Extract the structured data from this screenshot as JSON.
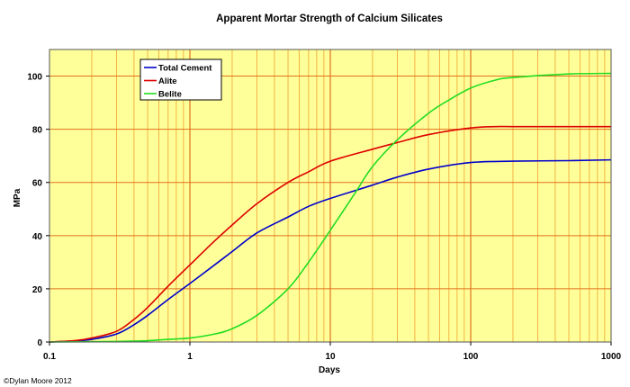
{
  "chart_data": {
    "type": "line",
    "title": "Apparent Mortar Strength of Calcium Silicates",
    "xlabel": "Days",
    "ylabel": "MPa",
    "xscale": "log",
    "xlim": [
      0.1,
      1000
    ],
    "ylim": [
      0,
      110
    ],
    "xticks": [
      "0.1",
      "1",
      "10",
      "100",
      "1000"
    ],
    "yticks": [
      "0",
      "20",
      "40",
      "60",
      "80",
      "100"
    ],
    "grid": true,
    "legend_position": "top-left",
    "background_color": "#ffff99",
    "grid_color": "#f0a030",
    "series": [
      {
        "name": "Total Cement",
        "color": "#0000cc",
        "x": [
          0.1,
          0.15,
          0.2,
          0.3,
          0.4,
          0.5,
          0.7,
          1,
          1.5,
          2,
          3,
          5,
          7,
          10,
          20,
          30,
          50,
          100,
          200,
          500,
          1000
        ],
        "y": [
          0,
          0.4,
          1,
          3,
          6.5,
          10,
          16,
          22,
          29,
          34,
          41,
          47,
          51,
          54,
          59,
          62,
          65,
          67.5,
          68,
          68.2,
          68.5
        ]
      },
      {
        "name": "Alite",
        "color": "#dd0000",
        "x": [
          0.1,
          0.15,
          0.2,
          0.3,
          0.4,
          0.5,
          0.7,
          1,
          1.5,
          2,
          3,
          5,
          7,
          10,
          20,
          30,
          50,
          100,
          150,
          200,
          500,
          1000
        ],
        "y": [
          0,
          0.5,
          1.5,
          4,
          8.5,
          13,
          21,
          29,
          38,
          44,
          52,
          60,
          64,
          68,
          72.5,
          75,
          78,
          80.5,
          81,
          81,
          81,
          81
        ]
      },
      {
        "name": "Belite",
        "color": "#22dd22",
        "x": [
          0.1,
          0.2,
          0.3,
          0.5,
          0.7,
          1,
          1.5,
          2,
          3,
          5,
          7,
          10,
          15,
          20,
          30,
          50,
          70,
          100,
          150,
          200,
          500,
          1000
        ],
        "y": [
          0,
          0.1,
          0.2,
          0.5,
          1,
          1.5,
          3,
          5,
          10,
          20,
          30,
          42,
          56,
          66,
          76,
          86,
          91,
          95.5,
          98.5,
          99.5,
          100.8,
          101
        ]
      }
    ]
  },
  "copyright": "©Dylan Moore 2012"
}
